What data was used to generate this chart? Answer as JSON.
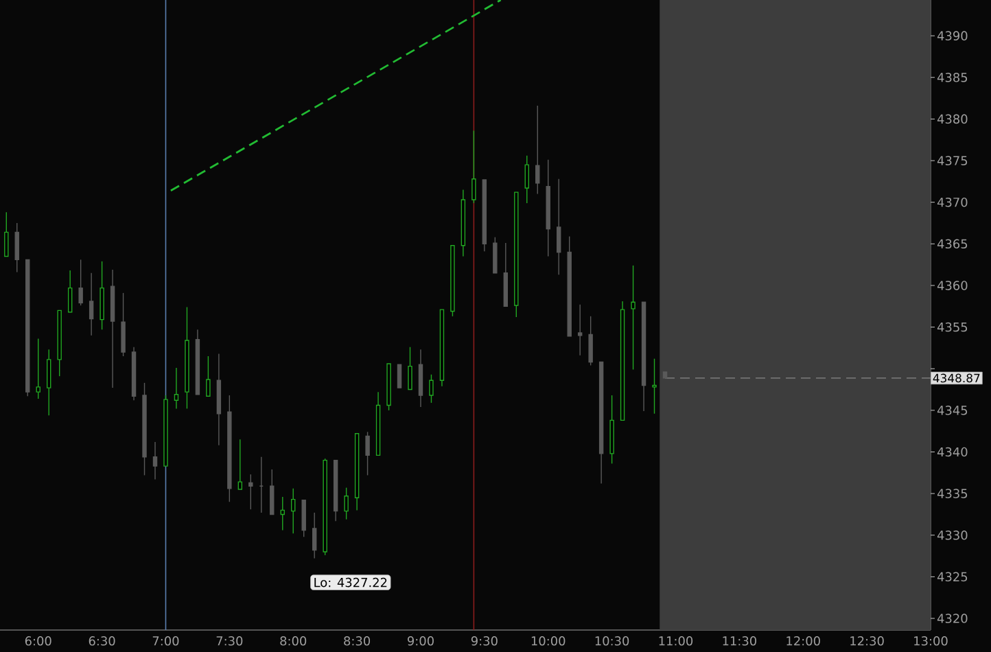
{
  "chart_data": {
    "type": "candlestick",
    "x": [
      5.75,
      5.8333,
      5.9167,
      6,
      6.0833,
      6.1667,
      6.25,
      6.3333,
      6.4167,
      6.5,
      6.5833,
      6.6667,
      6.75,
      6.8333,
      6.9167,
      7,
      7.0833,
      7.1667,
      7.25,
      7.3333,
      7.4167,
      7.5,
      7.5833,
      7.6667,
      7.75,
      7.8333,
      7.9167,
      8,
      8.0833,
      8.1667,
      8.25,
      8.3333,
      8.4167,
      8.5,
      8.5833,
      8.6667,
      8.75,
      8.8333,
      8.9167,
      9,
      9.0833,
      9.1667,
      9.25,
      9.3333,
      9.4167,
      9.5,
      9.5833,
      9.6667,
      9.75,
      9.8333,
      9.9167,
      10,
      10.0833,
      10.1667,
      10.25,
      10.3333,
      10.4167,
      10.5,
      10.5833,
      10.6667,
      10.75,
      10.8333,
      10.9167
    ],
    "ohlc": [
      [
        4363.5,
        4368.8,
        4363.5,
        4366.4
      ],
      [
        4366.4,
        4367.5,
        4361.6,
        4363.1
      ],
      [
        4363.1,
        4363.1,
        4346.7,
        4347.2
      ],
      [
        4347.2,
        4353.6,
        4346.4,
        4347.8
      ],
      [
        4347.7,
        4352.3,
        4344.4,
        4351.1
      ],
      [
        4351.1,
        4357.0,
        4349.1,
        4357.0
      ],
      [
        4356.8,
        4361.8,
        4356.8,
        4359.7
      ],
      [
        4359.7,
        4363.1,
        4357.6,
        4357.9
      ],
      [
        4358.1,
        4361.5,
        4354.0,
        4356.0
      ],
      [
        4355.9,
        4362.9,
        4354.7,
        4359.7
      ],
      [
        4359.9,
        4361.9,
        4347.7,
        4355.7
      ],
      [
        4355.6,
        4359.1,
        4351.5,
        4352.0
      ],
      [
        4352.0,
        4352.6,
        4346.2,
        4346.7
      ],
      [
        4346.8,
        4348.3,
        4337.2,
        4339.4
      ],
      [
        4339.4,
        4341.2,
        4336.7,
        4338.3
      ],
      [
        4338.3,
        4346.8,
        4338.3,
        4346.3
      ],
      [
        4346.2,
        4350.1,
        4345.2,
        4346.9
      ],
      [
        4347.2,
        4357.4,
        4345.2,
        4353.4
      ],
      [
        4353.5,
        4354.7,
        4346.9,
        4346.9
      ],
      [
        4346.7,
        4351.5,
        4346.7,
        4348.7
      ],
      [
        4348.6,
        4351.8,
        4340.8,
        4344.6
      ],
      [
        4344.8,
        4346.8,
        4334.0,
        4335.6
      ],
      [
        4335.5,
        4341.5,
        4335.5,
        4336.4
      ],
      [
        4336.3,
        4337.3,
        4333.1,
        4335.9
      ],
      [
        4335.9,
        4339.4,
        4332.7,
        4335.9
      ],
      [
        4335.9,
        4337.9,
        4332.5,
        4332.5
      ],
      [
        4332.5,
        4334.6,
        4330.6,
        4333.0
      ],
      [
        4332.9,
        4335.6,
        4330.2,
        4334.3
      ],
      [
        4334.2,
        4334.2,
        4329.8,
        4330.6
      ],
      [
        4330.8,
        4332.7,
        4327.22,
        4328.2
      ],
      [
        4328.0,
        4339.2,
        4327.6,
        4339.0
      ],
      [
        4339.0,
        4339.0,
        4331.7,
        4332.9
      ],
      [
        4332.9,
        4335.7,
        4331.9,
        4334.7
      ],
      [
        4334.5,
        4342.2,
        4333.0,
        4342.2
      ],
      [
        4341.9,
        4342.4,
        4337.2,
        4339.6
      ],
      [
        4339.6,
        4347.2,
        4339.6,
        4345.6
      ],
      [
        4345.6,
        4350.6,
        4345.0,
        4350.6
      ],
      [
        4350.5,
        4350.5,
        4347.7,
        4347.7
      ],
      [
        4347.5,
        4352.6,
        4347.5,
        4350.3
      ],
      [
        4350.5,
        4352.3,
        4345.4,
        4346.8
      ],
      [
        4346.8,
        4349.3,
        4345.9,
        4348.6
      ],
      [
        4348.6,
        4357.1,
        4347.9,
        4357.1
      ],
      [
        4356.9,
        4364.8,
        4356.3,
        4364.8
      ],
      [
        4364.8,
        4371.5,
        4363.5,
        4370.3
      ],
      [
        4370.3,
        4378.6,
        4369.9,
        4372.8
      ],
      [
        4372.7,
        4372.7,
        4364.1,
        4365.0
      ],
      [
        4365.1,
        4365.8,
        4361.5,
        4361.5
      ],
      [
        4361.5,
        4365.1,
        4357.5,
        4357.5
      ],
      [
        4357.6,
        4371.2,
        4356.2,
        4371.2
      ],
      [
        4371.7,
        4375.6,
        4369.9,
        4374.5
      ],
      [
        4374.4,
        4381.6,
        4371.0,
        4372.3
      ],
      [
        4371.9,
        4375.1,
        4363.5,
        4366.8
      ],
      [
        4367.0,
        4372.8,
        4361.3,
        4364.0
      ],
      [
        4364.0,
        4365.9,
        4353.9,
        4353.9
      ],
      [
        4354.3,
        4357.7,
        4351.6,
        4354.0
      ],
      [
        4354.1,
        4356.3,
        4350.4,
        4350.8
      ],
      [
        4350.8,
        4350.8,
        4336.2,
        4339.8
      ],
      [
        4339.8,
        4346.8,
        4338.6,
        4343.8
      ],
      [
        4343.8,
        4358.1,
        4343.8,
        4357.1
      ],
      [
        4357.2,
        4362.4,
        4349.9,
        4358.0
      ],
      [
        4358.0,
        4358.0,
        4344.9,
        4348.0
      ],
      [
        4347.8,
        4351.2,
        4344.6,
        4348.0
      ],
      [
        4349.6,
        4349.6,
        4348.87,
        4348.87
      ]
    ],
    "colors": [
      "#22a822",
      "#5a5a5a",
      "#5a5a5a",
      "#22a822",
      "#22a822",
      "#22a822",
      "#22a822",
      "#5a5a5a",
      "#5a5a5a",
      "#22a822",
      "#5a5a5a",
      "#5a5a5a",
      "#5a5a5a",
      "#5a5a5a",
      "#5a5a5a",
      "#22a822",
      "#22a822",
      "#22a822",
      "#5a5a5a",
      "#22a822",
      "#5a5a5a",
      "#5a5a5a",
      "#22a822",
      "#5a5a5a",
      "#5a5a5a",
      "#5a5a5a",
      "#22a822",
      "#22a822",
      "#5a5a5a",
      "#5a5a5a",
      "#22a822",
      "#5a5a5a",
      "#22a822",
      "#22a822",
      "#5a5a5a",
      "#22a822",
      "#22a822",
      "#5a5a5a",
      "#22a822",
      "#5a5a5a",
      "#22a822",
      "#22a822",
      "#22a822",
      "#22a822",
      "#22a822",
      "#5a5a5a",
      "#5a5a5a",
      "#5a5a5a",
      "#22a822",
      "#22a822",
      "#5a5a5a",
      "#5a5a5a",
      "#5a5a5a",
      "#5a5a5a",
      "#5a5a5a",
      "#5a5a5a",
      "#5a5a5a",
      "#22a822",
      "#22a822",
      "#22a822",
      "#5a5a5a",
      "#22a822",
      "#5a5a5a"
    ],
    "series": [
      {
        "type": "line",
        "x": [
          7.04,
          9.628
        ],
        "values": [
          4371.4,
          4394.3
        ],
        "color": "#22bb33",
        "line_style": "dashed"
      }
    ],
    "xlim": [
      5.7,
      13.0
    ],
    "xticks": [
      {
        "value": 6,
        "label": "6:00"
      },
      {
        "value": 6.5,
        "label": "6:30"
      },
      {
        "value": 7,
        "label": "7:00"
      },
      {
        "value": 7.5,
        "label": "7:30"
      },
      {
        "value": 8,
        "label": "8:00"
      },
      {
        "value": 8.5,
        "label": "8:30"
      },
      {
        "value": 9,
        "label": "9:00"
      },
      {
        "value": 9.5,
        "label": "9:30"
      },
      {
        "value": 10,
        "label": "10:00"
      },
      {
        "value": 10.5,
        "label": "10:30"
      },
      {
        "value": 11,
        "label": "11:00"
      },
      {
        "value": 11.5,
        "label": "11:30"
      },
      {
        "value": 12,
        "label": "12:00"
      },
      {
        "value": 12.5,
        "label": "12:30"
      },
      {
        "value": 13,
        "label": "13:00"
      }
    ],
    "ylim": [
      4318.6,
      4394.3
    ],
    "yticks": [
      4320,
      4325,
      4330,
      4335,
      4340,
      4345,
      {
        "value": 4350,
        "label": null
      },
      4355,
      4360,
      4365,
      4370,
      4375,
      4380,
      4385,
      4390
    ],
    "ref_lines": [
      {
        "axis": "x",
        "value": 7.0,
        "color": "#5b7fb0"
      },
      {
        "axis": "x",
        "value": 9.4167,
        "color": "#8a1c1c"
      },
      {
        "axis": "y",
        "value": 4348.87,
        "label": "4348.87",
        "color": "#888888",
        "line_style": "dashed"
      }
    ],
    "bands": [
      {
        "axis": "x",
        "from": 10.875,
        "to": 13.0,
        "color": "#3d3d3d"
      }
    ],
    "annotations": [
      {
        "text": "Lo: 4327.22",
        "x": 8.1667,
        "y": 4327.22
      }
    ]
  }
}
